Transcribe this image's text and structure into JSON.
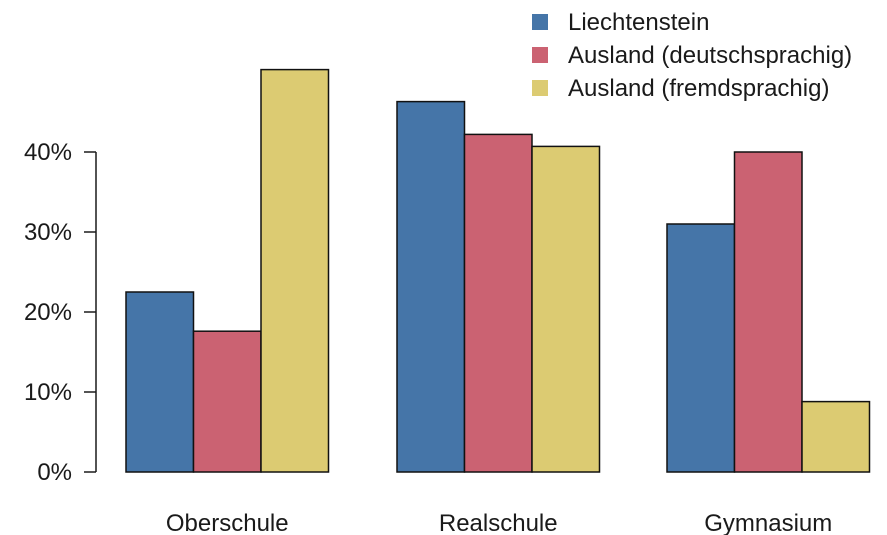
{
  "chart_data": {
    "type": "bar",
    "categories": [
      "Oberschule",
      "Realschule",
      "Gymnasium"
    ],
    "series": [
      {
        "name": "Liechtenstein",
        "color": "#4575a8",
        "values": [
          22.5,
          46.3,
          31.0
        ]
      },
      {
        "name": "Ausland (deutschsprachig)",
        "color": "#cb6272",
        "values": [
          17.6,
          42.2,
          40.0
        ]
      },
      {
        "name": "Ausland (fremdsprachig)",
        "color": "#dccb72",
        "values": [
          50.3,
          40.7,
          8.8
        ]
      }
    ],
    "ylim": [
      0,
      50
    ],
    "yticks": [
      0,
      10,
      20,
      30,
      40
    ],
    "ytick_labels": [
      "0%",
      "10%",
      "20%",
      "30%",
      "40%"
    ],
    "legend_position": "top-right",
    "grid": false
  }
}
